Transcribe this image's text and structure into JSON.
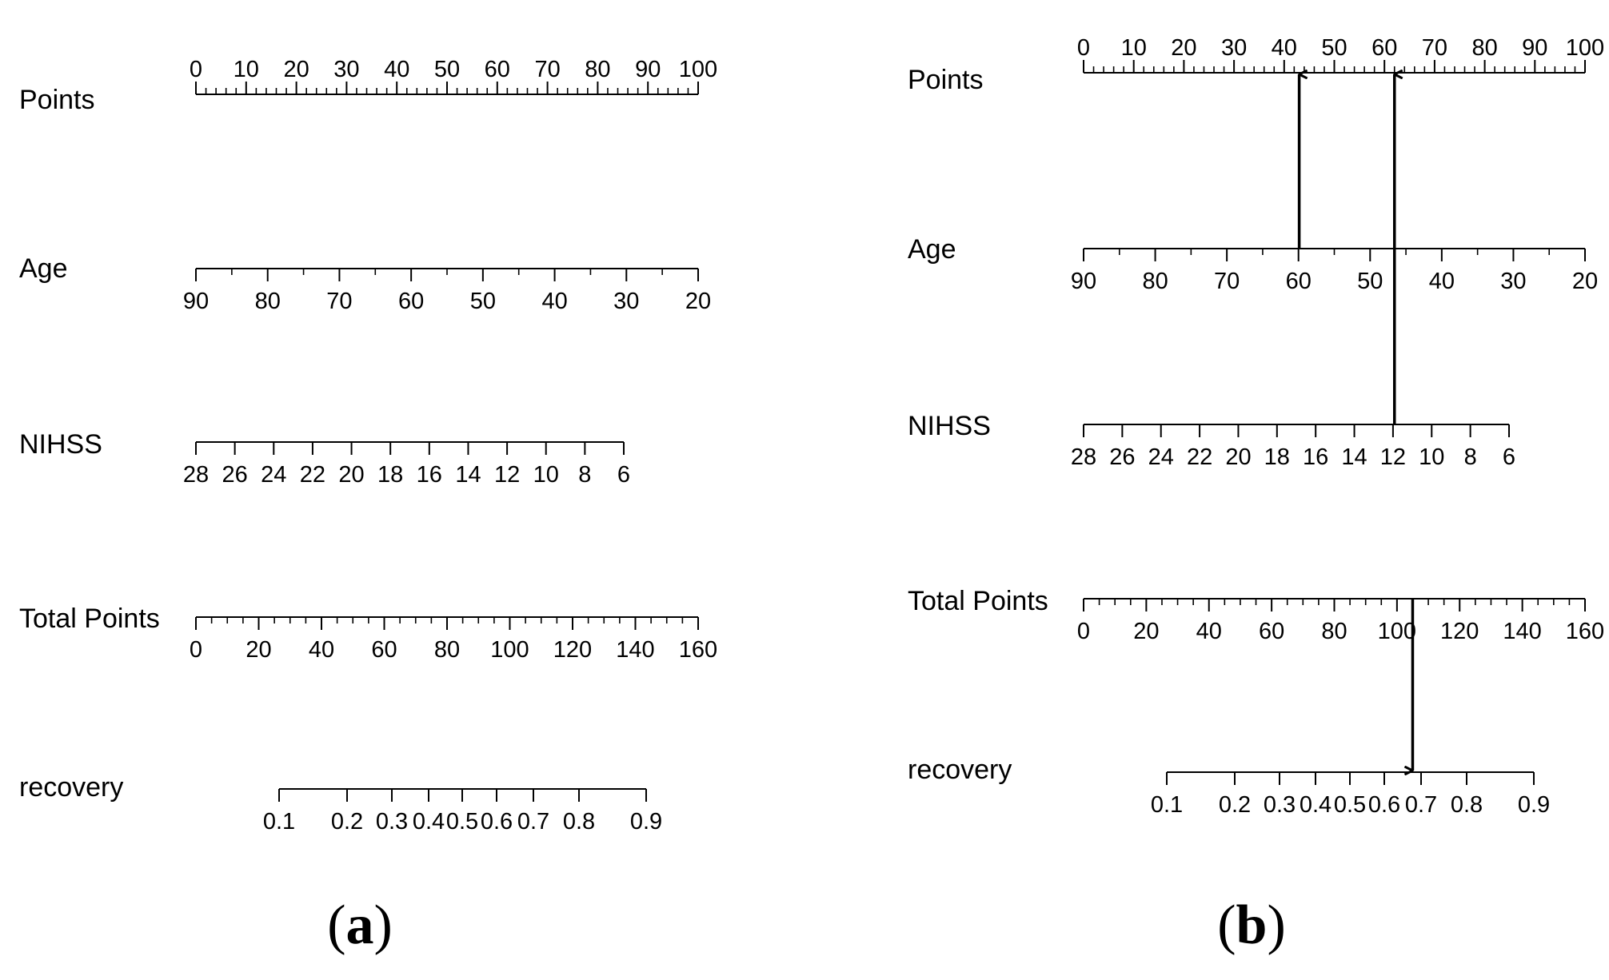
{
  "chart_data": [
    {
      "type": "nomogram",
      "panel_label": {
        "open": "(",
        "letter": "a",
        "close": ")"
      },
      "scales": [
        {
          "name": "Points",
          "min": 0,
          "max": 100,
          "ticks": [
            0,
            10,
            20,
            30,
            40,
            50,
            60,
            70,
            80,
            90,
            100
          ],
          "labels": [
            "0",
            "10",
            "20",
            "30",
            "40",
            "50",
            "60",
            "70",
            "80",
            "90",
            "100"
          ],
          "minor_step": 2,
          "label_side": "above"
        },
        {
          "name": "Age",
          "min": 20,
          "max": 90,
          "reversed": true,
          "ticks": [
            90,
            80,
            70,
            60,
            50,
            40,
            30,
            20
          ],
          "labels": [
            "90",
            "80",
            "70",
            "60",
            "50",
            "40",
            "30",
            "20"
          ],
          "minor_step": 5,
          "label_side": "below"
        },
        {
          "name": "NIHSS",
          "min": 6,
          "max": 28,
          "reversed": true,
          "ticks": [
            28,
            26,
            24,
            22,
            20,
            18,
            16,
            14,
            12,
            10,
            8,
            6
          ],
          "labels": [
            "28",
            "26",
            "24",
            "22",
            "20",
            "18",
            "16",
            "14",
            "12",
            "10",
            "8",
            "6"
          ],
          "label_side": "below"
        },
        {
          "name": "Total Points",
          "min": 0,
          "max": 160,
          "ticks": [
            0,
            20,
            40,
            60,
            80,
            100,
            120,
            140,
            160
          ],
          "labels": [
            "0",
            "20",
            "40",
            "60",
            "80",
            "100",
            "120",
            "140",
            "160"
          ],
          "minor_step": 5,
          "label_side": "below"
        },
        {
          "name": "recovery",
          "ticks": [
            0.1,
            0.2,
            0.3,
            0.4,
            0.5,
            0.6,
            0.7,
            0.8,
            0.9
          ],
          "labels": [
            "0.1",
            "0.2",
            "0.3",
            "0.4",
            "0.5",
            "0.6",
            "0.7",
            "0.8",
            "0.9"
          ],
          "label_side": "below"
        }
      ]
    },
    {
      "type": "nomogram",
      "panel_label": {
        "open": "(",
        "letter": "b",
        "close": ")"
      },
      "scales": [
        {
          "name": "Points",
          "min": 0,
          "max": 100,
          "ticks": [
            0,
            10,
            20,
            30,
            40,
            50,
            60,
            70,
            80,
            90,
            100
          ],
          "labels": [
            "0",
            "10",
            "20",
            "30",
            "40",
            "50",
            "60",
            "70",
            "80",
            "90",
            "100"
          ],
          "minor_step": 2,
          "label_side": "above"
        },
        {
          "name": "Age",
          "min": 20,
          "max": 90,
          "reversed": true,
          "ticks": [
            90,
            80,
            70,
            60,
            50,
            40,
            30,
            20
          ],
          "labels": [
            "90",
            "80",
            "70",
            "60",
            "50",
            "40",
            "30",
            "20"
          ],
          "minor_step": 5,
          "label_side": "below"
        },
        {
          "name": "NIHSS",
          "min": 6,
          "max": 28,
          "reversed": true,
          "ticks": [
            28,
            26,
            24,
            22,
            20,
            18,
            16,
            14,
            12,
            10,
            8,
            6
          ],
          "labels": [
            "28",
            "26",
            "24",
            "22",
            "20",
            "18",
            "16",
            "14",
            "12",
            "10",
            "8",
            "6"
          ],
          "label_side": "below"
        },
        {
          "name": "Total Points",
          "min": 0,
          "max": 160,
          "ticks": [
            0,
            20,
            40,
            60,
            80,
            100,
            120,
            140,
            160
          ],
          "labels": [
            "0",
            "20",
            "40",
            "60",
            "80",
            "100",
            "120",
            "140",
            "160"
          ],
          "minor_step": 5,
          "label_side": "below"
        },
        {
          "name": "recovery",
          "ticks": [
            0.1,
            0.2,
            0.3,
            0.4,
            0.5,
            0.6,
            0.7,
            0.8,
            0.9
          ],
          "labels": [
            "0.1",
            "0.2",
            "0.3",
            "0.4",
            "0.5",
            "0.6",
            "0.7",
            "0.8",
            "0.9"
          ],
          "label_side": "below"
        }
      ],
      "example": [
        {
          "from_scale": "Age",
          "value": 60,
          "to_scale": "Points",
          "points": 43
        },
        {
          "from_scale": "NIHSS",
          "value": 12,
          "to_scale": "Points",
          "points": 62
        },
        {
          "from_scale": "Total Points",
          "value": 105,
          "to_scale": "recovery",
          "probability": 0.67
        }
      ]
    }
  ]
}
